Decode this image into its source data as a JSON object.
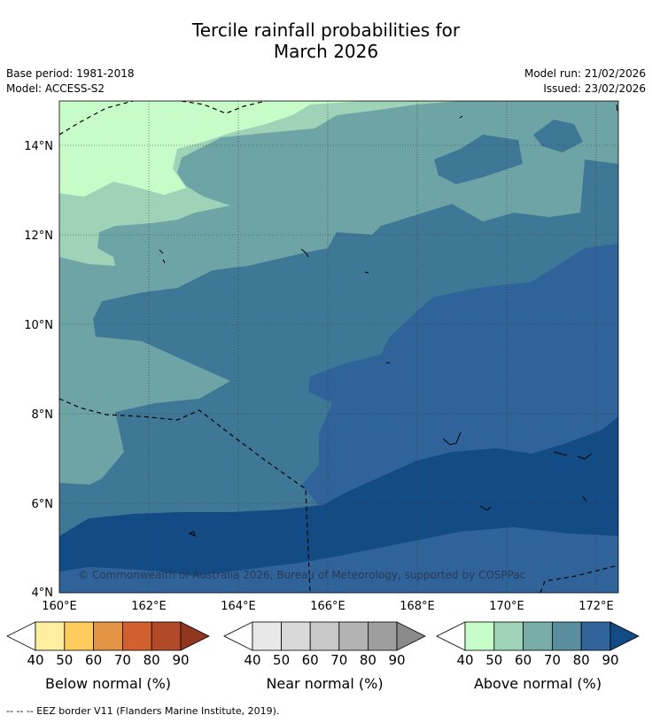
{
  "title_line1": "Tercile rainfall probabilities for",
  "title_line2": "March 2026",
  "base_period": "Base period: 1981-2018",
  "model": "Model: ACCESS-S2",
  "model_run": "Model run: 21/02/2026",
  "issued": "Issued: 23/02/2026",
  "copyright": "© Commonwealth of Australia 2026, Bureau of Meteorology, supported by COSPPac",
  "footer": "--  --  -- EEZ border V11 (Flanders Marine Institute, 2019).",
  "map": {
    "lon_labels": [
      "160°E",
      "162°E",
      "164°E",
      "166°E",
      "168°E",
      "170°E",
      "172°E"
    ],
    "lat_labels": [
      "14°N",
      "12°N",
      "10°N",
      "8°N",
      "6°N",
      "4°N"
    ],
    "lon_range": [
      160,
      172.5
    ],
    "lat_range": [
      4,
      15
    ]
  },
  "colorbars": {
    "below": {
      "label": "Below normal (%)",
      "ticks": [
        "40",
        "50",
        "60",
        "70",
        "80",
        "90"
      ],
      "colors": [
        "#ffffff",
        "#ffeda0",
        "#fecc5c",
        "#e39444",
        "#d06030",
        "#b04a28",
        "#8f3520"
      ]
    },
    "near": {
      "label": "Near normal (%)",
      "ticks": [
        "40",
        "50",
        "60",
        "70",
        "80",
        "90"
      ],
      "colors": [
        "#ffffff",
        "#e8e8e8",
        "#d9d9d9",
        "#c8c8c8",
        "#b3b3b3",
        "#9e9e9e",
        "#8a8a8a"
      ]
    },
    "above": {
      "label": "Above normal (%)",
      "ticks": [
        "40",
        "50",
        "60",
        "70",
        "80",
        "90"
      ],
      "colors": [
        "#ffffff",
        "#c7fcc8",
        "#9fd3b8",
        "#78aca7",
        "#5a8e9f",
        "#2f6399",
        "#134b84"
      ]
    }
  }
}
